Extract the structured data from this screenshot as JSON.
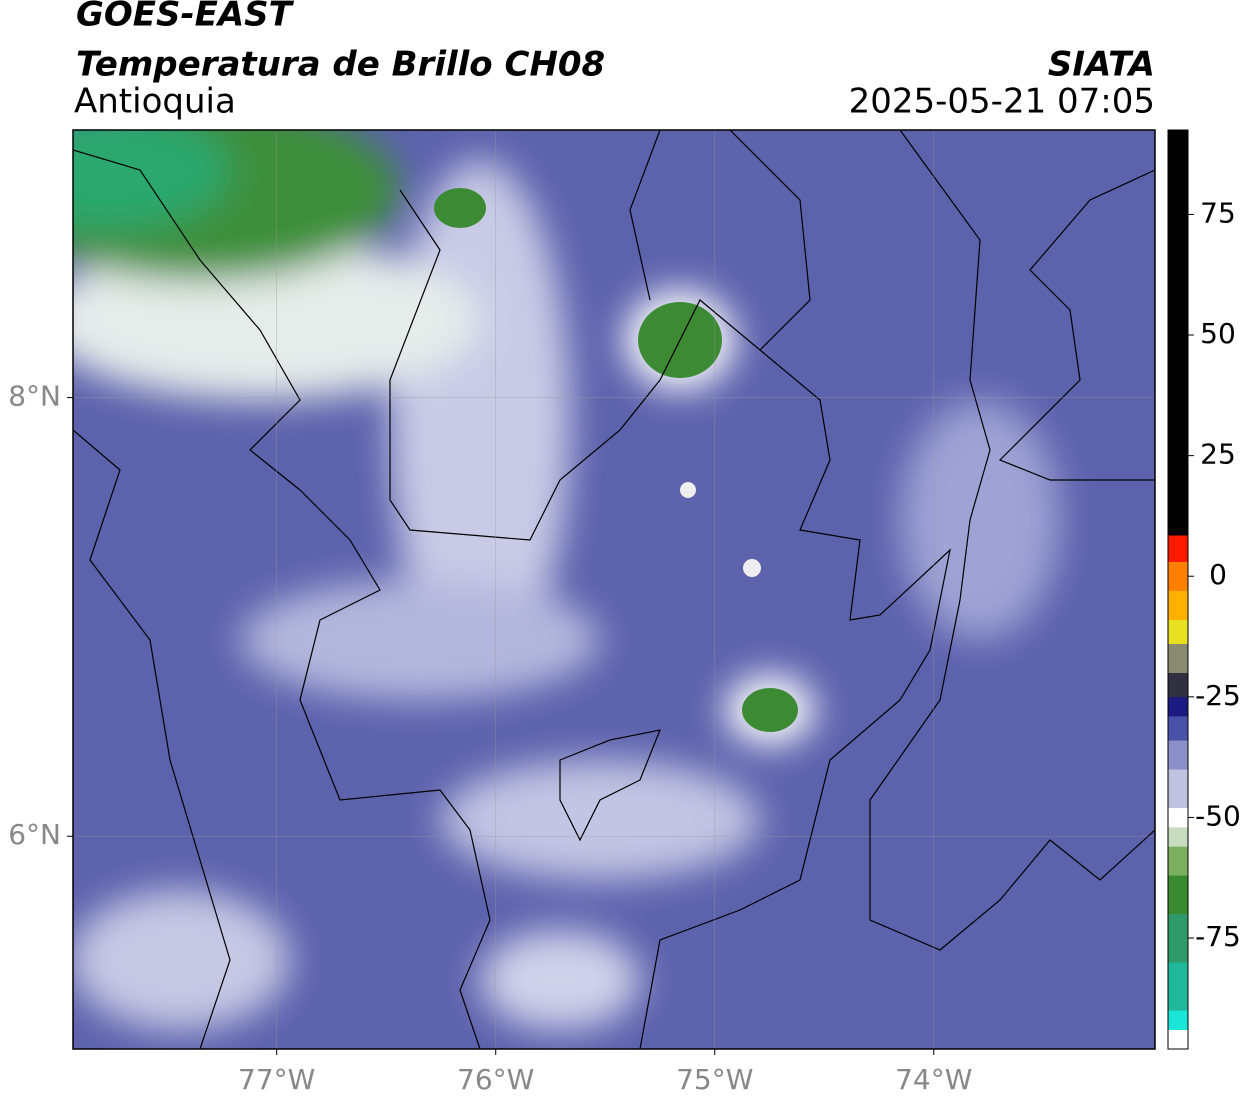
{
  "header": {
    "satellite": "GOES-EAST",
    "product": "Temperatura de Brillo CH08",
    "region": "Antioquia",
    "source": "SIATA",
    "datetime": "2025-05-21 07:05"
  },
  "map": {
    "xlim": [
      -77.93,
      -72.99
    ],
    "ylim": [
      5.03,
      9.22
    ],
    "xticks": [
      {
        "value": -77,
        "label": "77°W"
      },
      {
        "value": -76,
        "label": "76°W"
      },
      {
        "value": -75,
        "label": "75°W"
      },
      {
        "value": -74,
        "label": "74°W"
      }
    ],
    "yticks": [
      {
        "value": 8,
        "label": "8°N"
      },
      {
        "value": 6,
        "label": "6°N"
      }
    ],
    "grid": true
  },
  "colorbar": {
    "lim": [
      -98,
      92.5
    ],
    "ticks": [
      -75,
      -50,
      -25,
      0,
      25,
      50,
      75
    ],
    "segments": [
      {
        "from": -98,
        "to": -94,
        "color": "#ffffff"
      },
      {
        "from": -94,
        "to": -90,
        "color": "#19e6d8"
      },
      {
        "from": -90,
        "to": -80,
        "color": "#20b89a"
      },
      {
        "from": -80,
        "to": -70,
        "color": "#2e9a6a"
      },
      {
        "from": -70,
        "to": -62,
        "color": "#3a8a30"
      },
      {
        "from": -62,
        "to": -56,
        "color": "#7bb060"
      },
      {
        "from": -56,
        "to": -52,
        "color": "#c8dcc0"
      },
      {
        "from": -52,
        "to": -48,
        "color": "#ffffff"
      },
      {
        "from": -48,
        "to": -40,
        "color": "#c0c3e0"
      },
      {
        "from": -40,
        "to": -34,
        "color": "#8a8fc8"
      },
      {
        "from": -34,
        "to": -29,
        "color": "#4a52a8"
      },
      {
        "from": -29,
        "to": -25,
        "color": "#1a1a80"
      },
      {
        "from": -25,
        "to": -20,
        "color": "#303040"
      },
      {
        "from": -20,
        "to": -14,
        "color": "#8a8a70"
      },
      {
        "from": -14,
        "to": -9,
        "color": "#e8e020"
      },
      {
        "from": -9,
        "to": -3,
        "color": "#ffb000"
      },
      {
        "from": -3,
        "to": 3,
        "color": "#ff8000"
      },
      {
        "from": 3,
        "to": 8.5,
        "color": "#ff1a00"
      },
      {
        "from": 8.5,
        "to": 92.5,
        "color": "#000000"
      }
    ]
  }
}
